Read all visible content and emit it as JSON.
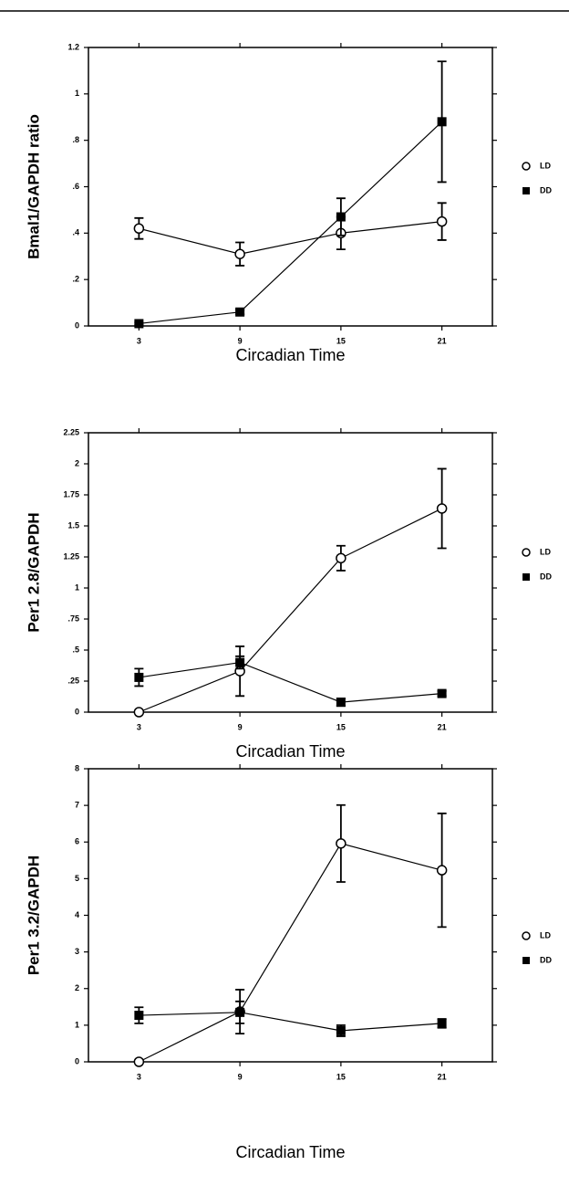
{
  "chart_data": [
    {
      "type": "line",
      "y_label": "Bmal1/GAPDH ratio",
      "x_label": "Circadian Time",
      "x": [
        3,
        9,
        15,
        21
      ],
      "xlim": [
        0,
        24
      ],
      "xticks": [
        3,
        9,
        15,
        21
      ],
      "ylim": [
        0,
        1.2
      ],
      "yticks": [
        0,
        {
          "value": 0.2,
          "label": ".2"
        },
        {
          "value": 0.4,
          "label": ".4"
        },
        {
          "value": 0.6,
          "label": ".6"
        },
        {
          "value": 0.8,
          "label": ".8"
        },
        1,
        1.2
      ],
      "series": [
        {
          "name": "LD",
          "color": "#000000",
          "marker": "circle",
          "values": [
            0.42,
            0.31,
            0.4,
            0.45
          ],
          "errors": [
            0.045,
            0.05,
            0.07,
            0.08
          ]
        },
        {
          "name": "DD",
          "color": "#000000",
          "marker": "square",
          "values": [
            0.01,
            0.06,
            0.47,
            0.88
          ],
          "errors": [
            0.005,
            0.01,
            0.08,
            0.26
          ]
        }
      ]
    },
    {
      "type": "line",
      "y_label": "Per1 2.8/GAPDH",
      "x_label": "Circadian Time",
      "x": [
        3,
        9,
        15,
        21
      ],
      "xlim": [
        0,
        24
      ],
      "xticks": [
        3,
        9,
        15,
        21
      ],
      "ylim": [
        0,
        2.25
      ],
      "yticks": [
        0,
        {
          "value": 0.25,
          "label": ".25"
        },
        {
          "value": 0.5,
          "label": ".5"
        },
        {
          "value": 0.75,
          "label": ".75"
        },
        1,
        1.25,
        1.5,
        1.75,
        2,
        2.25
      ],
      "series": [
        {
          "name": "LD",
          "color": "#000000",
          "marker": "circle",
          "values": [
            0,
            0.33,
            1.24,
            1.64
          ],
          "errors": [
            0,
            0.2,
            0.1,
            0.32
          ]
        },
        {
          "name": "DD",
          "color": "#000000",
          "marker": "square",
          "values": [
            0.28,
            0.4,
            0.08,
            0.15
          ],
          "errors": [
            0.07,
            0.05,
            0.03,
            0.02
          ]
        }
      ]
    },
    {
      "type": "line",
      "y_label": "Per1 3.2/GAPDH",
      "x_label": "Circadian Time",
      "x": [
        3,
        9,
        15,
        21
      ],
      "xlim": [
        0,
        24
      ],
      "xticks": [
        3,
        9,
        15,
        21
      ],
      "ylim": [
        0,
        8
      ],
      "yticks": [
        0,
        1,
        2,
        3,
        4,
        5,
        6,
        7,
        8
      ],
      "series": [
        {
          "name": "LD",
          "color": "#000000",
          "marker": "circle",
          "values": [
            0,
            1.37,
            5.96,
            5.23
          ],
          "errors": [
            0,
            0.6,
            1.05,
            1.55
          ]
        },
        {
          "name": "DD",
          "color": "#000000",
          "marker": "square",
          "values": [
            1.27,
            1.35,
            0.85,
            1.05
          ],
          "errors": [
            0.22,
            0.3,
            0.15,
            0.12
          ]
        }
      ]
    }
  ]
}
